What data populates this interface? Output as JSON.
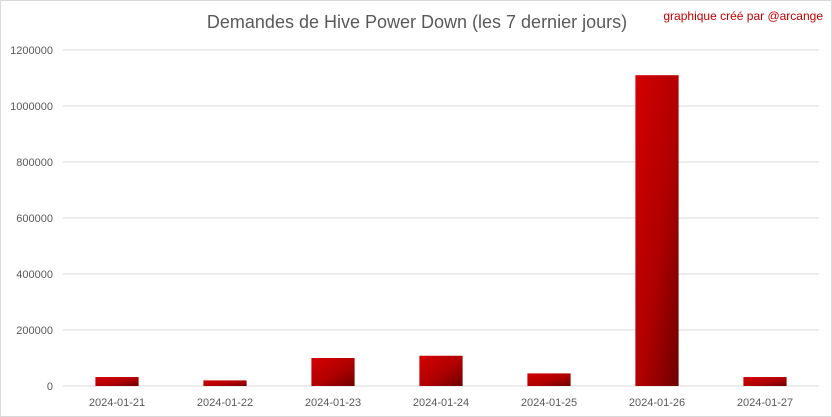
{
  "chart_data": {
    "type": "bar",
    "title": "Demandes de Hive Power Down (les 7 dernier jours)",
    "annotation": "graphique créé par @arcange",
    "xlabel": "",
    "ylabel": "",
    "categories": [
      "2024-01-21",
      "2024-01-22",
      "2024-01-23",
      "2024-01-24",
      "2024-01-25",
      "2024-01-26",
      "2024-01-27"
    ],
    "values": [
      32000,
      20000,
      100000,
      108000,
      45000,
      1110000,
      32000
    ],
    "ylim": [
      0,
      1200000
    ],
    "yticks": [
      "0",
      "200000",
      "400000",
      "600000",
      "800000",
      "1000000",
      "1200000"
    ],
    "grid": true,
    "legend": "none",
    "colors": {
      "bar_light": "#d40000",
      "bar_dark": "#6e0000",
      "grid": "#d9d9d9",
      "text": "#595959"
    }
  }
}
